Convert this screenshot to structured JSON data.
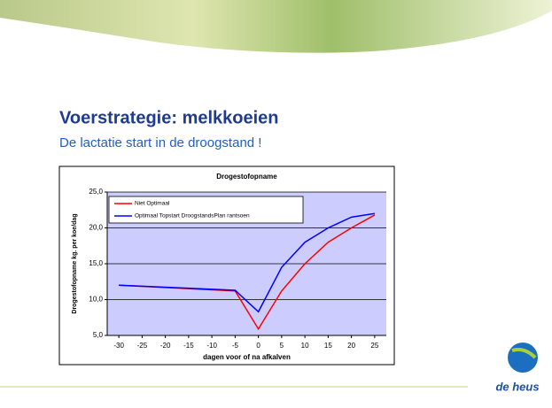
{
  "slide": {
    "title": "Voerstrategie: melkkoeien",
    "subtitle": "De lactatie start in de droogstand !"
  },
  "logo": {
    "text": "de heus"
  },
  "chart_data": {
    "type": "line",
    "title": "Drogestofopname",
    "x_label": "dagen voor of na afkalven",
    "y_label": "Drogestofopname kg. per koe/dag",
    "x": [
      -30,
      -5,
      0,
      5,
      10,
      15,
      20,
      25
    ],
    "series": [
      {
        "name": "Niet Optimaal",
        "color": "#ff0000",
        "values": [
          12.0,
          11.2,
          5.9,
          11.2,
          15.0,
          18.0,
          20.0,
          21.8
        ]
      },
      {
        "name": "Optimaal Topstart DroogstandsPlan rantsoen",
        "color": "#0000ff",
        "values": [
          12.0,
          11.3,
          8.3,
          14.5,
          18.0,
          20.0,
          21.5,
          22.0
        ]
      }
    ],
    "xlim": [
      -32.5,
      27.5
    ],
    "xticks": [
      -30,
      -25,
      -20,
      -15,
      -10,
      -5,
      0,
      5,
      10,
      15,
      20,
      25
    ],
    "ylim": [
      5,
      25
    ],
    "yticks": [
      {
        "value": 5,
        "label": "5,0"
      },
      {
        "value": 10,
        "label": "10,0"
      },
      {
        "value": 15,
        "label": "15,0"
      },
      {
        "value": 20,
        "label": "20,0"
      },
      {
        "value": 25,
        "label": "25,0"
      }
    ],
    "grid": true,
    "legend": "top-left",
    "plot_background": "#ccccff"
  }
}
